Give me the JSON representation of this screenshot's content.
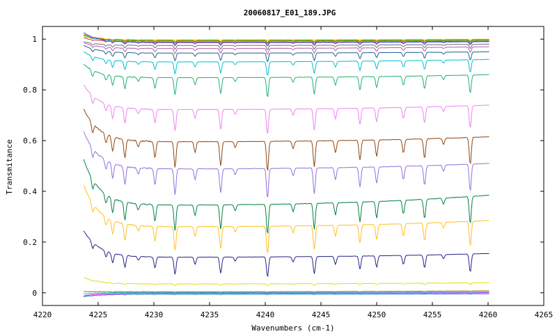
{
  "chart_data": {
    "type": "line",
    "title": "20060817_E01_189.JPG",
    "xlabel": "Wavenumbers (cm-1)",
    "ylabel": "Transmitance",
    "xlim": [
      4220,
      4265
    ],
    "ylim": [
      -0.05,
      1.05
    ],
    "x_ticks": [
      4220,
      4225,
      4230,
      4235,
      4240,
      4245,
      4250,
      4255,
      4260,
      4265
    ],
    "y_ticks": [
      0,
      0.2,
      0.4,
      0.6,
      0.8,
      1
    ],
    "y_tick_labels": [
      "0",
      "0.2",
      "0.4",
      "0.6",
      "0.8",
      "1"
    ],
    "grid": false,
    "legend": "none",
    "x_range": [
      4223.7,
      4260.1
    ],
    "absorption_lines": [
      {
        "x": 4224.5,
        "depth": 0.06
      },
      {
        "x": 4225.7,
        "depth": 0.06
      },
      {
        "x": 4226.3,
        "depth": 0.1
      },
      {
        "x": 4227.4,
        "depth": 0.12
      },
      {
        "x": 4228.6,
        "depth": 0.04
      },
      {
        "x": 4230.1,
        "depth": 0.11
      },
      {
        "x": 4231.9,
        "depth": 0.17
      },
      {
        "x": 4233.7,
        "depth": 0.07
      },
      {
        "x": 4236.0,
        "depth": 0.16
      },
      {
        "x": 4237.3,
        "depth": 0.04
      },
      {
        "x": 4240.2,
        "depth": 0.2
      },
      {
        "x": 4242.5,
        "depth": 0.05
      },
      {
        "x": 4244.4,
        "depth": 0.17
      },
      {
        "x": 4246.3,
        "depth": 0.08
      },
      {
        "x": 4248.5,
        "depth": 0.13
      },
      {
        "x": 4250.0,
        "depth": 0.11
      },
      {
        "x": 4252.4,
        "depth": 0.09
      },
      {
        "x": 4254.3,
        "depth": 0.13
      },
      {
        "x": 4256.0,
        "depth": 0.04
      },
      {
        "x": 4258.4,
        "depth": 0.18
      }
    ],
    "series": [
      {
        "color": "#d4d400",
        "start": 1.01,
        "end": 1.0,
        "baseline": 0.998,
        "depth_scale": 0.02
      },
      {
        "color": "#ff8c00",
        "start": 1.02,
        "end": 0.998,
        "baseline": 0.995,
        "depth_scale": 0.03
      },
      {
        "color": "#00a000",
        "start": 1.015,
        "end": 0.996,
        "baseline": 0.993,
        "depth_scale": 0.04
      },
      {
        "color": "#d83838",
        "start": 1.005,
        "end": 0.992,
        "baseline": 0.989,
        "depth_scale": 0.05
      },
      {
        "color": "#4040ff",
        "start": 1.025,
        "end": 0.99,
        "baseline": 0.986,
        "depth_scale": 0.07
      },
      {
        "color": "#707070",
        "start": 0.99,
        "end": 0.98,
        "baseline": 0.975,
        "depth_scale": 0.09
      },
      {
        "color": "#b05fb0",
        "start": 0.985,
        "end": 0.97,
        "baseline": 0.963,
        "depth_scale": 0.12
      },
      {
        "color": "#1e6090",
        "start": 0.975,
        "end": 0.95,
        "baseline": 0.945,
        "depth_scale": 0.18
      },
      {
        "color": "#00c0d0",
        "start": 0.95,
        "end": 0.92,
        "baseline": 0.91,
        "depth_scale": 0.28
      },
      {
        "color": "#20b070",
        "start": 0.9,
        "end": 0.86,
        "baseline": 0.848,
        "depth_scale": 0.4
      },
      {
        "color": "#ee82ee",
        "start": 0.82,
        "end": 0.74,
        "baseline": 0.722,
        "depth_scale": 0.5
      },
      {
        "color": "#8b4513",
        "start": 0.725,
        "end": 0.615,
        "baseline": 0.595,
        "depth_scale": 0.6
      },
      {
        "color": "#9370db",
        "start": 0.635,
        "end": 0.51,
        "baseline": 0.488,
        "depth_scale": 0.6
      },
      {
        "color": "#008040",
        "start": 0.525,
        "end": 0.385,
        "baseline": 0.345,
        "depth_scale": 0.6
      },
      {
        "color": "#ffc020",
        "start": 0.425,
        "end": 0.285,
        "baseline": 0.26,
        "depth_scale": 0.55
      },
      {
        "color": "#22228a",
        "start": 0.245,
        "end": 0.155,
        "baseline": 0.14,
        "depth_scale": 0.4
      },
      {
        "color": "#e0e000",
        "start": 0.06,
        "end": 0.04,
        "baseline": 0.035,
        "depth_scale": 0.04
      },
      {
        "color": "#808000",
        "start": 0.005,
        "end": 0.008,
        "baseline": 0.004,
        "depth_scale": 0.01
      },
      {
        "color": "#00bcd4",
        "start": -0.005,
        "end": 0.003,
        "baseline": 0.001,
        "depth_scale": 0.008
      },
      {
        "color": "#ff00ff",
        "start": -0.012,
        "end": 0.0,
        "baseline": -0.002,
        "depth_scale": 0.008
      },
      {
        "color": "#3a7bd5",
        "start": -0.015,
        "end": -0.004,
        "baseline": -0.006,
        "depth_scale": 0.008
      }
    ]
  }
}
